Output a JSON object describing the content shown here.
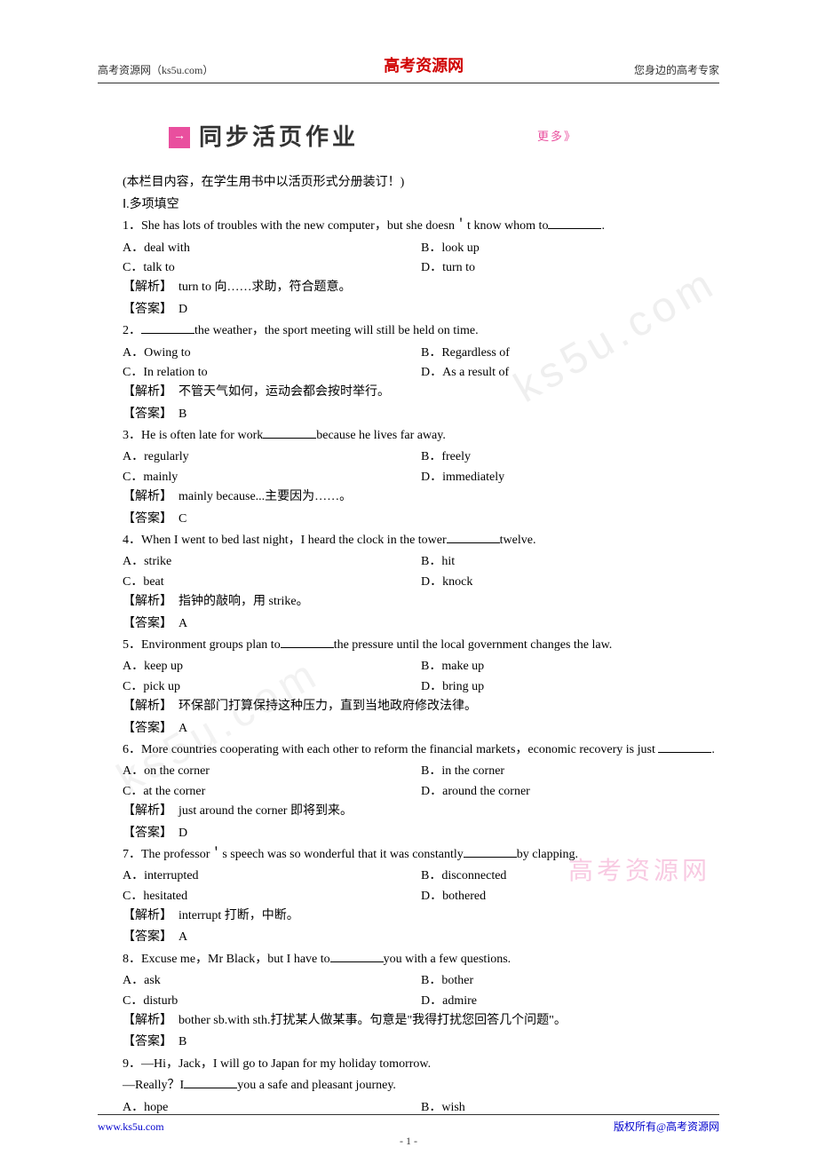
{
  "header": {
    "left": "高考资源网（ks5u.com）",
    "center_red": "高考资源网",
    "right": "您身边的高考专家"
  },
  "banner": {
    "title": "同步活页作业",
    "more": "更多》"
  },
  "intro": "(本栏目内容，在学生用书中以活页形式分册装订！)",
  "section_label": "Ⅰ.多项填空",
  "questions": [
    {
      "num": "1",
      "stem_pre": "．She has lots of troubles with the new computer，but she doesn＇t know whom to",
      "stem_post": ".",
      "choices": [
        "A．deal with",
        "B．look up",
        "C．talk to",
        "D．turn to"
      ],
      "analysis": "【解析】　turn to 向……求助，符合题意。",
      "answer": "【答案】　D"
    },
    {
      "num": "2",
      "stem_pre": "．",
      "stem_post": "the weather，the sport meeting will still be held on time.",
      "choices": [
        "A．Owing to",
        "B．Regardless of",
        "C．In relation to",
        "D．As a result of"
      ],
      "analysis": "【解析】　不管天气如何，运动会都会按时举行。",
      "answer": "【答案】　B"
    },
    {
      "num": "3",
      "stem_pre": "．He is often late for work",
      "stem_post": "because he lives far away.",
      "choices": [
        "A．regularly",
        "B．freely",
        "C．mainly",
        "D．immediately"
      ],
      "analysis": "【解析】　mainly because...主要因为……。",
      "answer": "【答案】　C"
    },
    {
      "num": "4",
      "stem_pre": "．When I went to bed last night，I heard the clock in the tower",
      "stem_post": "twelve.",
      "choices": [
        "A．strike",
        "B．hit",
        "C．beat",
        "D．knock"
      ],
      "analysis": "【解析】　指钟的敲响，用 strike。",
      "answer": "【答案】　A"
    },
    {
      "num": "5",
      "stem_pre": "．Environment groups plan to",
      "stem_post": "the pressure until the local government changes the law.",
      "choices": [
        "A．keep up",
        "B．make up",
        "C．pick up",
        "D．bring up"
      ],
      "analysis": "【解析】　环保部门打算保持这种压力，直到当地政府修改法律。",
      "answer": "【答案】　A"
    },
    {
      "num": "6",
      "stem_full": "．More countries cooperating with each other to reform the financial markets，economic recovery is just ",
      "stem_post": ".",
      "choices": [
        "A．on the corner",
        "B．in the corner",
        "C．at the corner",
        "D．around the corner"
      ],
      "analysis": "【解析】　just around the corner 即将到来。",
      "answer": "【答案】　D"
    },
    {
      "num": "7",
      "stem_pre": "．The professor＇s speech was so wonderful that it was constantly",
      "stem_post": "by clapping.",
      "choices": [
        "A．interrupted",
        "B．disconnected",
        "C．hesitated",
        "D．bothered"
      ],
      "analysis": "【解析】　interrupt 打断，中断。",
      "answer": "【答案】　A"
    },
    {
      "num": "8",
      "stem_pre": "．Excuse me，Mr Black，but I have to",
      "stem_post": "you with a few questions.",
      "choices": [
        "A．ask",
        "B．bother",
        "C．disturb",
        "D．admire"
      ],
      "analysis": "【解析】　bother sb.with sth.打扰某人做某事。句意是\"我得打扰您回答几个问题\"。",
      "answer": "【答案】　B"
    },
    {
      "num": "9",
      "stem_line1": "．—Hi，Jack，I will go to Japan for my holiday tomorrow.",
      "stem_line2_pre": "—Really？I",
      "stem_line2_post": "you a safe and pleasant journey.",
      "choices": [
        "A．hope",
        "B．wish"
      ],
      "analysis": "",
      "answer": ""
    }
  ],
  "footer": {
    "left": "www.ks5u.com",
    "center": "- 1 -",
    "right": "版权所有@高考资源网"
  },
  "watermarks": {
    "wm1": "ks5u.com",
    "wm2": "ks5u.com",
    "wm3": "高考资源网"
  }
}
